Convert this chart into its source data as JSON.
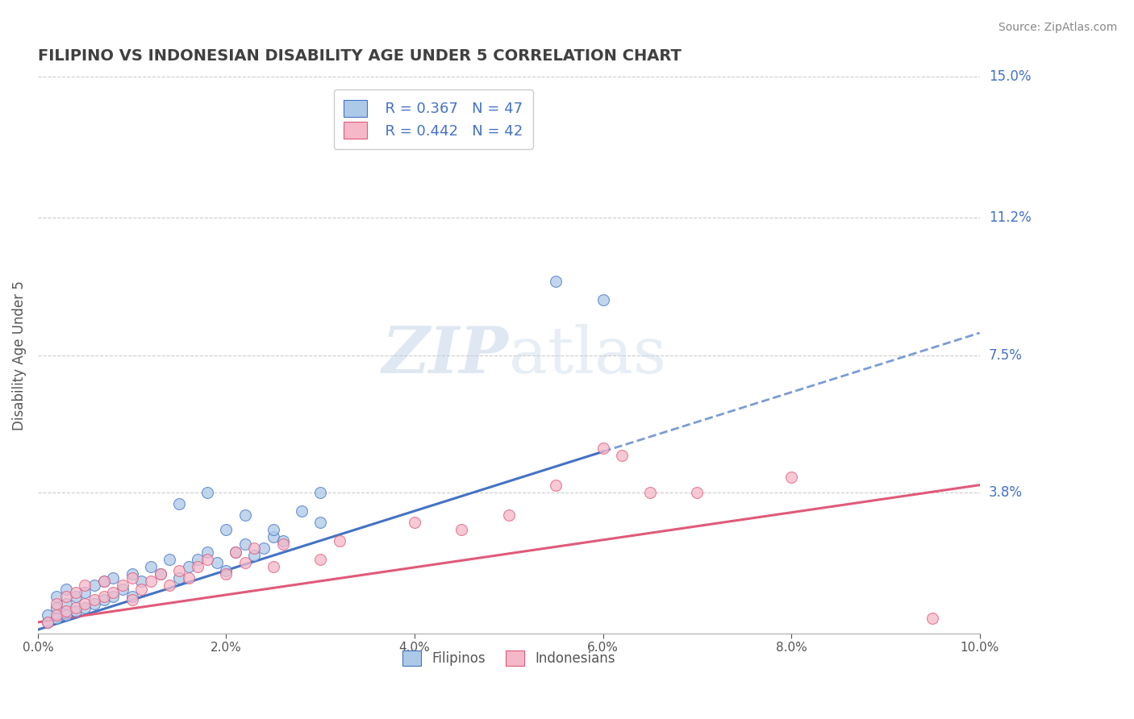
{
  "title": "FILIPINO VS INDONESIAN DISABILITY AGE UNDER 5 CORRELATION CHART",
  "source": "Source: ZipAtlas.com",
  "ylabel": "Disability Age Under 5",
  "xlim": [
    0.0,
    0.1
  ],
  "ylim": [
    0.0,
    0.15
  ],
  "xtick_vals": [
    0.0,
    0.02,
    0.04,
    0.06,
    0.08,
    0.1
  ],
  "xtick_labels": [
    "0.0%",
    "2.0%",
    "4.0%",
    "6.0%",
    "8.0%",
    "10.0%"
  ],
  "ytick_positions": [
    0.038,
    0.075,
    0.112,
    0.15
  ],
  "ytick_labels": [
    "3.8%",
    "7.5%",
    "11.2%",
    "15.0%"
  ],
  "filipino_R": 0.367,
  "filipino_N": 47,
  "indonesian_R": 0.442,
  "indonesian_N": 42,
  "filipino_color": "#adc9e8",
  "indonesian_color": "#f5b8c8",
  "filipino_line_color": "#4472c4",
  "indonesian_line_color": "#e05a7a",
  "title_color": "#404040",
  "ytick_color": "#4472c4",
  "grid_color": "#cccccc",
  "watermark_color": "#ccd8e8",
  "filipino_line_slope": 0.8,
  "filipino_line_intercept": 0.001,
  "indonesian_line_slope": 0.37,
  "indonesian_line_intercept": 0.003,
  "filipino_x": [
    0.001,
    0.001,
    0.002,
    0.002,
    0.002,
    0.003,
    0.003,
    0.003,
    0.004,
    0.004,
    0.005,
    0.005,
    0.006,
    0.006,
    0.007,
    0.007,
    0.008,
    0.008,
    0.009,
    0.01,
    0.01,
    0.011,
    0.012,
    0.013,
    0.014,
    0.015,
    0.016,
    0.017,
    0.018,
    0.019,
    0.02,
    0.021,
    0.022,
    0.023,
    0.024,
    0.025,
    0.026,
    0.03,
    0.02,
    0.015,
    0.022,
    0.018,
    0.025,
    0.028,
    0.03,
    0.055,
    0.06
  ],
  "filipino_y": [
    0.003,
    0.005,
    0.004,
    0.007,
    0.01,
    0.005,
    0.008,
    0.012,
    0.006,
    0.01,
    0.007,
    0.011,
    0.008,
    0.013,
    0.009,
    0.014,
    0.01,
    0.015,
    0.012,
    0.01,
    0.016,
    0.014,
    0.018,
    0.016,
    0.02,
    0.015,
    0.018,
    0.02,
    0.022,
    0.019,
    0.017,
    0.022,
    0.024,
    0.021,
    0.023,
    0.026,
    0.025,
    0.03,
    0.028,
    0.035,
    0.032,
    0.038,
    0.028,
    0.033,
    0.038,
    0.095,
    0.09
  ],
  "indonesian_x": [
    0.001,
    0.002,
    0.002,
    0.003,
    0.003,
    0.004,
    0.004,
    0.005,
    0.005,
    0.006,
    0.007,
    0.007,
    0.008,
    0.009,
    0.01,
    0.01,
    0.011,
    0.012,
    0.013,
    0.014,
    0.015,
    0.016,
    0.017,
    0.018,
    0.02,
    0.021,
    0.022,
    0.023,
    0.025,
    0.026,
    0.03,
    0.032,
    0.04,
    0.045,
    0.05,
    0.055,
    0.06,
    0.062,
    0.065,
    0.07,
    0.08,
    0.095
  ],
  "indonesian_y": [
    0.003,
    0.005,
    0.008,
    0.006,
    0.01,
    0.007,
    0.011,
    0.008,
    0.013,
    0.009,
    0.01,
    0.014,
    0.011,
    0.013,
    0.009,
    0.015,
    0.012,
    0.014,
    0.016,
    0.013,
    0.017,
    0.015,
    0.018,
    0.02,
    0.016,
    0.022,
    0.019,
    0.023,
    0.018,
    0.024,
    0.02,
    0.025,
    0.03,
    0.028,
    0.032,
    0.04,
    0.05,
    0.048,
    0.038,
    0.038,
    0.042,
    0.004
  ]
}
